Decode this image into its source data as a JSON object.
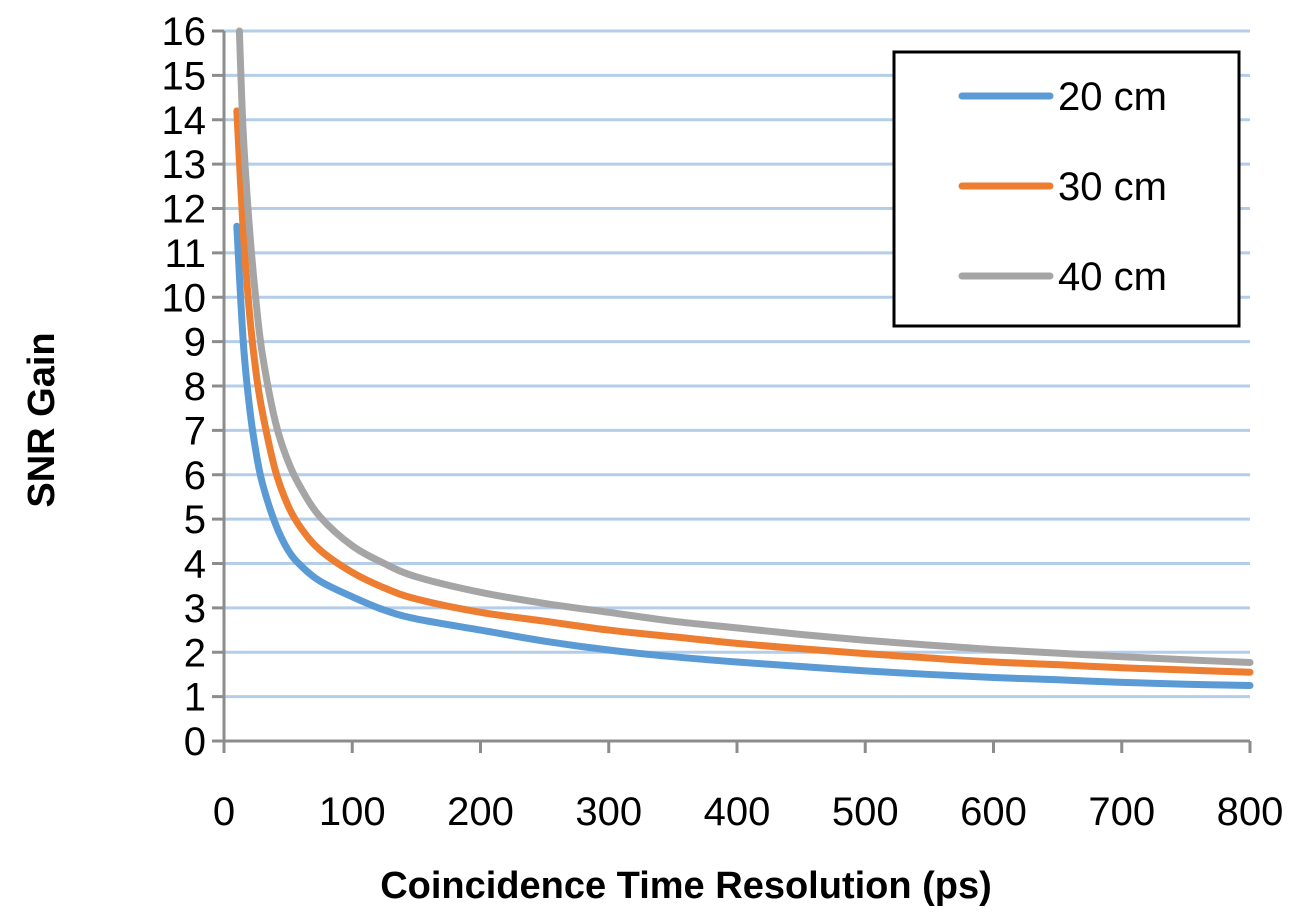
{
  "chart_data": {
    "type": "line",
    "title": "",
    "xlabel": "Coincidence Time Resolution (ps)",
    "ylabel": "SNR Gain",
    "xlim": [
      0,
      800
    ],
    "ylim": [
      0,
      16
    ],
    "xticks": [
      0,
      100,
      200,
      300,
      400,
      500,
      600,
      700,
      800
    ],
    "yticks": [
      0,
      1,
      2,
      3,
      4,
      5,
      6,
      7,
      8,
      9,
      10,
      11,
      12,
      13,
      14,
      15,
      16
    ],
    "grid": "horizontal",
    "grid_color": "#b4cde9",
    "legend_position": "top-right",
    "series": [
      {
        "name": "20 cm",
        "color": "#5b9bd5",
        "x": [
          10,
          15,
          20,
          25,
          30,
          40,
          50,
          60,
          75,
          100,
          125,
          150,
          200,
          250,
          300,
          350,
          400,
          450,
          500,
          550,
          600,
          650,
          700,
          750,
          800
        ],
        "y": [
          11.6,
          9.0,
          7.5,
          6.5,
          5.8,
          4.9,
          4.3,
          3.95,
          3.6,
          3.25,
          2.95,
          2.75,
          2.5,
          2.25,
          2.05,
          1.9,
          1.78,
          1.68,
          1.58,
          1.5,
          1.43,
          1.38,
          1.32,
          1.28,
          1.25
        ]
      },
      {
        "name": "30 cm",
        "color": "#ed7d31",
        "x": [
          10,
          15,
          20,
          25,
          30,
          40,
          50,
          60,
          75,
          100,
          125,
          150,
          200,
          250,
          300,
          350,
          400,
          450,
          500,
          550,
          600,
          650,
          700,
          750,
          800
        ],
        "y": [
          14.2,
          11.5,
          9.6,
          8.3,
          7.4,
          6.1,
          5.3,
          4.8,
          4.3,
          3.8,
          3.45,
          3.2,
          2.9,
          2.7,
          2.5,
          2.35,
          2.2,
          2.08,
          1.97,
          1.87,
          1.78,
          1.72,
          1.65,
          1.6,
          1.55
        ]
      },
      {
        "name": "40 cm",
        "color": "#a5a5a5",
        "x": [
          12,
          15,
          20,
          25,
          30,
          40,
          50,
          60,
          75,
          100,
          125,
          150,
          200,
          250,
          300,
          350,
          400,
          450,
          500,
          550,
          600,
          650,
          700,
          750,
          800
        ],
        "y": [
          16.0,
          13.7,
          11.5,
          9.9,
          8.7,
          7.2,
          6.3,
          5.7,
          5.05,
          4.4,
          4.0,
          3.7,
          3.35,
          3.1,
          2.9,
          2.7,
          2.55,
          2.4,
          2.27,
          2.16,
          2.06,
          1.98,
          1.9,
          1.83,
          1.77
        ]
      }
    ]
  }
}
